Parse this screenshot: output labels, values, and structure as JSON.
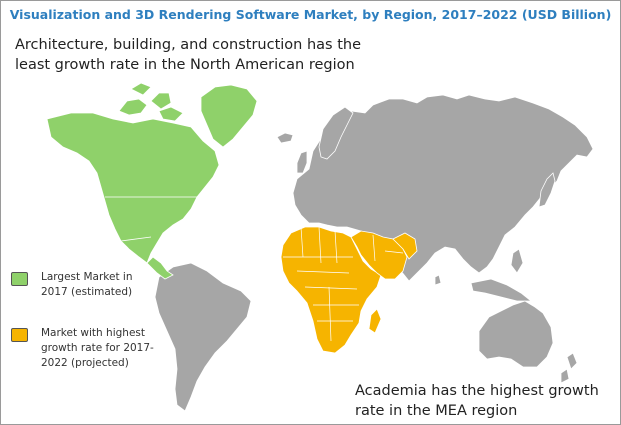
{
  "title": "Visualization and 3D Rendering Software Market, by Region, 2017–2022 (USD Billion)",
  "annotations": {
    "top": "Architecture, building, and construction has the least growth rate in the North American region",
    "bottom": "Academia  has the highest growth rate in the MEA region"
  },
  "legend": [
    {
      "label": "Largest Market in\n2017 (estimated)",
      "color": "#8fd16a"
    },
    {
      "label": "Market with highest\ngrowth rate for 2017-\n2022 (projected)",
      "color": "#f6b400"
    }
  ],
  "colors": {
    "north_america": "#8fd16a",
    "mea": "#f6b400",
    "other_regions": "#a6a6a6",
    "borders": "#ffffff",
    "title": "#2e7fbf"
  },
  "map": {
    "regions": [
      {
        "name": "North America",
        "status": "largest_market_2017"
      },
      {
        "name": "Middle East and Africa",
        "status": "highest_growth_2017_2022"
      },
      {
        "name": "Europe",
        "status": "other"
      },
      {
        "name": "Asia Pacific",
        "status": "other"
      },
      {
        "name": "South America",
        "status": "other"
      }
    ]
  }
}
